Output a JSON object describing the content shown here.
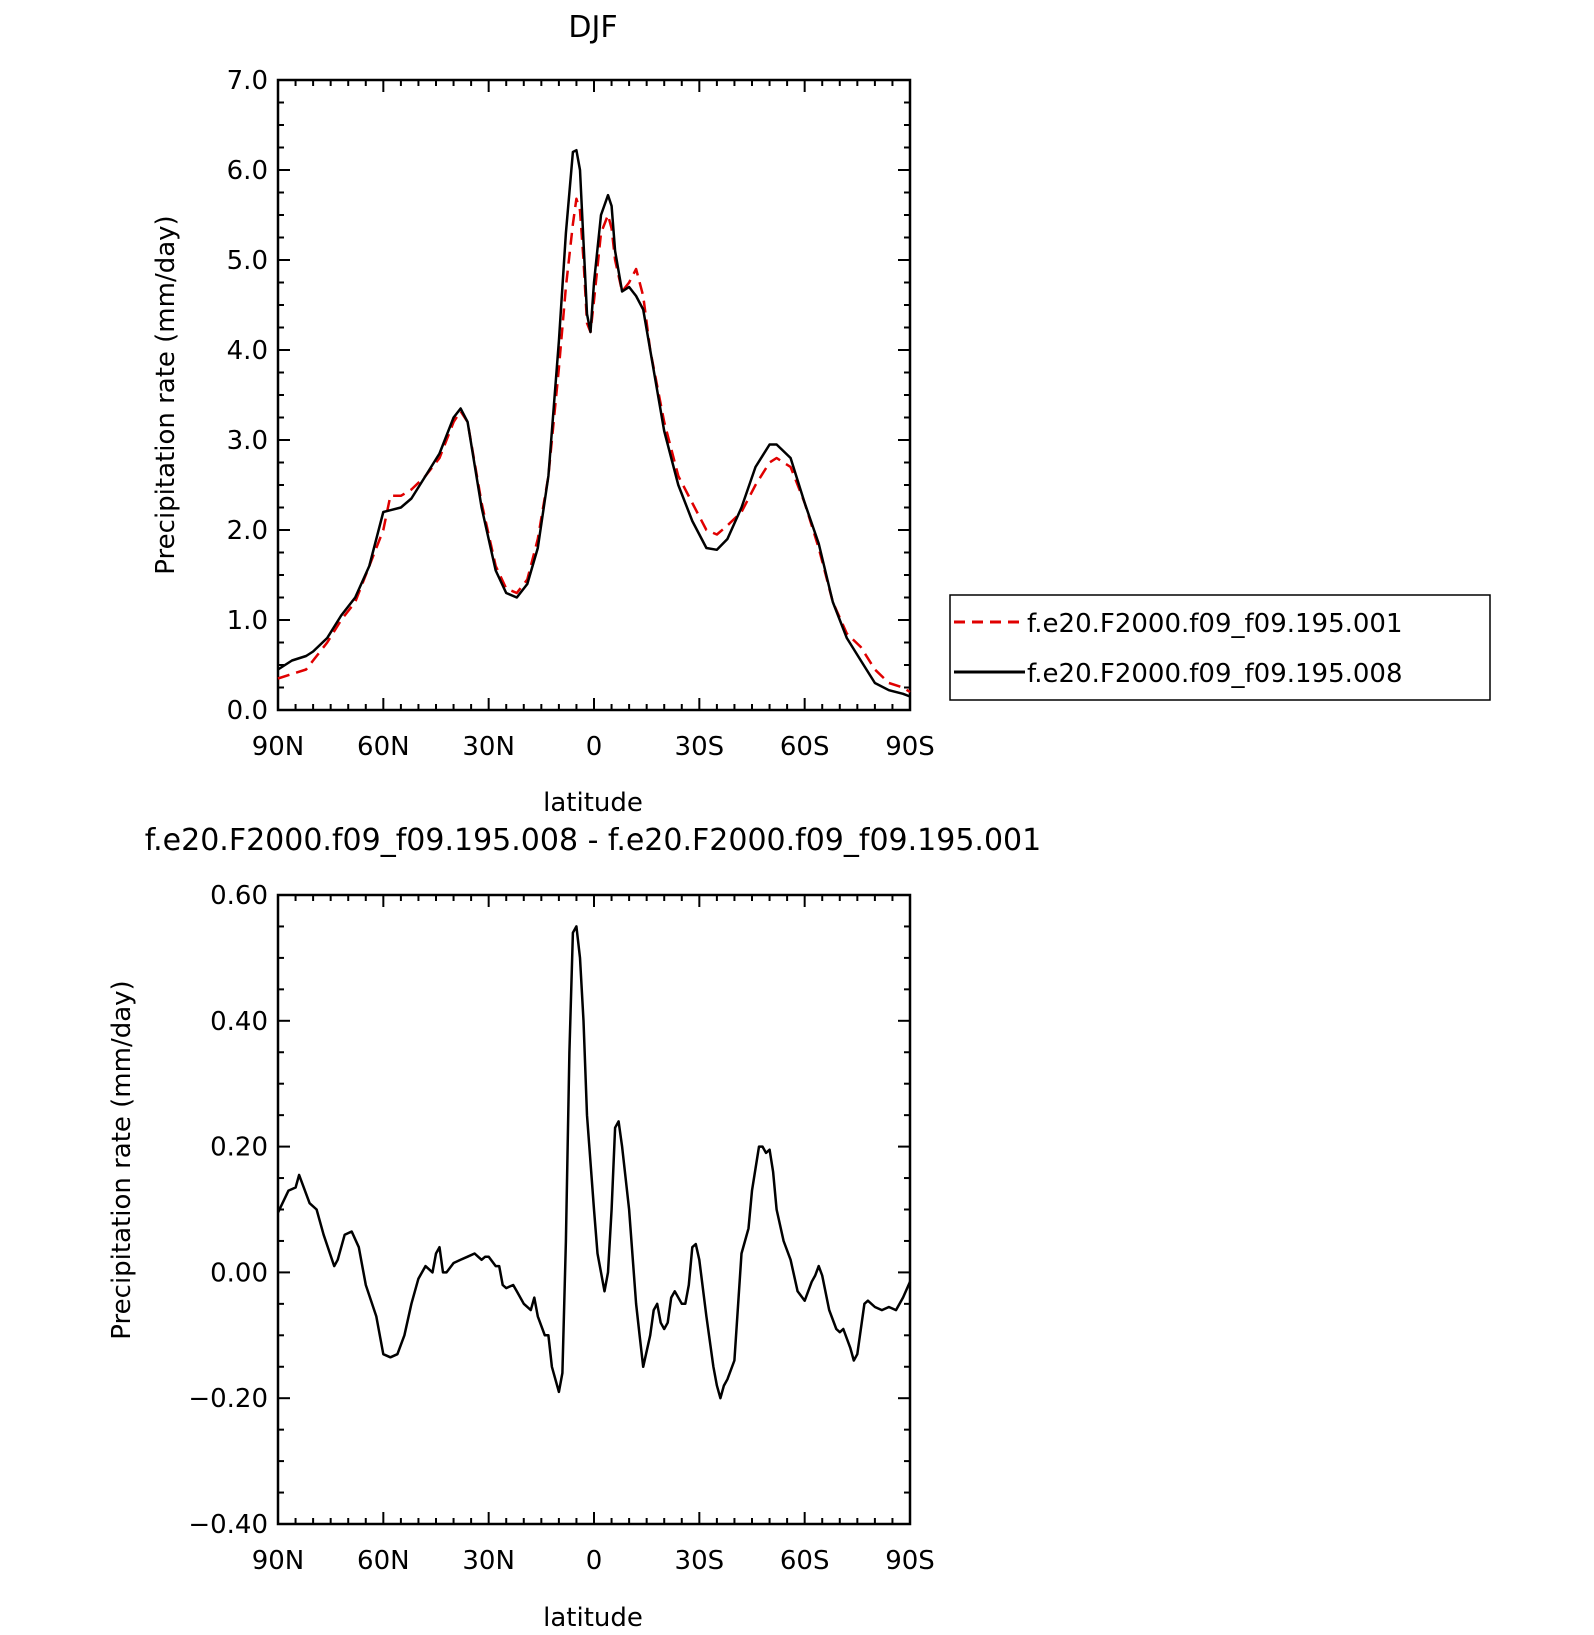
{
  "figure": {
    "background": "#ffffff",
    "line_color": "#000000",
    "dashed_color": "#e00000"
  },
  "chart_data": [
    {
      "type": "line",
      "title": "DJF",
      "xlabel": "latitude",
      "ylabel": "Precipitation rate (mm/day)",
      "xlim": [
        90,
        -90
      ],
      "ylim": [
        0.0,
        7.0
      ],
      "x_ticks": [
        90,
        60,
        30,
        0,
        -30,
        -60,
        -90
      ],
      "x_tick_labels": [
        "90N",
        "60N",
        "30N",
        "0",
        "30S",
        "60S",
        "90S"
      ],
      "y_ticks": [
        0.0,
        1.0,
        2.0,
        3.0,
        4.0,
        5.0,
        6.0,
        7.0
      ],
      "y_tick_labels": [
        "0.0",
        "1.0",
        "2.0",
        "3.0",
        "4.0",
        "5.0",
        "6.0",
        "7.0"
      ],
      "legend": "right, outside plot area",
      "grid": false,
      "series": [
        {
          "name": "f.e20.F2000.f09_f09.195.001",
          "style": "dashed",
          "color": "#e00000",
          "x": [
            90,
            86,
            82,
            80,
            76,
            72,
            68,
            64,
            60,
            58,
            55,
            52,
            48,
            44,
            40,
            38,
            36,
            32,
            28,
            25,
            22,
            19,
            16,
            13,
            10,
            8,
            6,
            5,
            4,
            3,
            2,
            1,
            0,
            -2,
            -4,
            -5,
            -6,
            -8,
            -10,
            -12,
            -14,
            -16,
            -20,
            -24,
            -28,
            -32,
            -35,
            -38,
            -42,
            -46,
            -50,
            -52,
            -56,
            -60,
            -64,
            -68,
            -72,
            -76,
            -80,
            -84,
            -88,
            -90
          ],
          "y": [
            0.35,
            0.4,
            0.45,
            0.55,
            0.75,
            1.0,
            1.2,
            1.6,
            2.0,
            2.38,
            2.38,
            2.45,
            2.6,
            2.8,
            3.2,
            3.32,
            3.2,
            2.3,
            1.6,
            1.35,
            1.3,
            1.45,
            1.9,
            2.6,
            3.8,
            4.7,
            5.4,
            5.68,
            5.55,
            5.0,
            4.3,
            4.2,
            4.55,
            5.3,
            5.5,
            5.35,
            5.0,
            4.65,
            4.75,
            4.9,
            4.6,
            4.0,
            3.2,
            2.6,
            2.3,
            2.0,
            1.95,
            2.05,
            2.2,
            2.5,
            2.75,
            2.8,
            2.7,
            2.3,
            1.8,
            1.2,
            0.85,
            0.7,
            0.45,
            0.3,
            0.25,
            0.2
          ]
        },
        {
          "name": "f.e20.F2000.f09_f09.195.008",
          "style": "solid",
          "color": "#000000",
          "x": [
            90,
            86,
            82,
            80,
            76,
            72,
            68,
            64,
            60,
            58,
            55,
            52,
            48,
            44,
            40,
            38,
            36,
            32,
            28,
            25,
            22,
            19,
            16,
            13,
            10,
            8,
            6,
            5,
            4,
            3,
            2,
            1,
            0,
            -2,
            -4,
            -5,
            -6,
            -8,
            -10,
            -12,
            -14,
            -16,
            -20,
            -24,
            -28,
            -32,
            -35,
            -38,
            -42,
            -46,
            -50,
            -52,
            -56,
            -60,
            -64,
            -68,
            -72,
            -76,
            -80,
            -84,
            -88,
            -90
          ],
          "y": [
            0.45,
            0.55,
            0.6,
            0.65,
            0.8,
            1.05,
            1.25,
            1.6,
            2.2,
            2.22,
            2.25,
            2.35,
            2.6,
            2.85,
            3.25,
            3.35,
            3.2,
            2.25,
            1.55,
            1.3,
            1.25,
            1.4,
            1.8,
            2.6,
            4.1,
            5.3,
            6.2,
            6.22,
            6.0,
            5.2,
            4.4,
            4.2,
            4.75,
            5.5,
            5.72,
            5.6,
            5.1,
            4.65,
            4.7,
            4.6,
            4.45,
            4.0,
            3.1,
            2.5,
            2.1,
            1.8,
            1.78,
            1.9,
            2.25,
            2.7,
            2.95,
            2.95,
            2.8,
            2.3,
            1.85,
            1.2,
            0.8,
            0.55,
            0.3,
            0.22,
            0.18,
            0.15
          ]
        }
      ]
    },
    {
      "type": "line",
      "title": "f.e20.F2000.f09_f09.195.008 - f.e20.F2000.f09_f09.195.001",
      "xlabel": "latitude",
      "ylabel": "Precipitation rate (mm/day)",
      "xlim": [
        90,
        -90
      ],
      "ylim": [
        -0.4,
        0.6
      ],
      "x_ticks": [
        90,
        60,
        30,
        0,
        -30,
        -60,
        -90
      ],
      "x_tick_labels": [
        "90N",
        "60N",
        "30N",
        "0",
        "30S",
        "60S",
        "90S"
      ],
      "y_ticks": [
        -0.4,
        -0.2,
        0.0,
        0.2,
        0.4,
        0.6
      ],
      "y_tick_labels": [
        "−0.40",
        "−0.20",
        "0.00",
        "0.20",
        "0.40",
        "0.60"
      ],
      "grid": false,
      "series": [
        {
          "style": "solid",
          "color": "#000000",
          "x": [
            90,
            87,
            85,
            84,
            81,
            79,
            77,
            74,
            73,
            71,
            69,
            67,
            65,
            62,
            60,
            58,
            56,
            54,
            52,
            50,
            48,
            46,
            45,
            44,
            43,
            42,
            40,
            38,
            36,
            34,
            33,
            32,
            31,
            30,
            28,
            27,
            26,
            25,
            23,
            22,
            20,
            18,
            17,
            16,
            14,
            13,
            12,
            10,
            9,
            8,
            7,
            6,
            5,
            4,
            3,
            2,
            0,
            -1,
            -2,
            -3,
            -4,
            -5,
            -6,
            -7,
            -8,
            -9,
            -10,
            -12,
            -13,
            -14,
            -16,
            -17,
            -18,
            -19,
            -20,
            -21,
            -22,
            -23,
            -25,
            -26,
            -27,
            -28,
            -29,
            -30,
            -32,
            -34,
            -35,
            -36,
            -37,
            -38,
            -40,
            -42,
            -43,
            -44,
            -45,
            -47,
            -48,
            -49,
            -50,
            -51,
            -52,
            -54,
            -56,
            -58,
            -60,
            -62,
            -63,
            -64,
            -65,
            -67,
            -69,
            -70,
            -71,
            -73,
            -74,
            -75,
            -77,
            -78,
            -80,
            -82,
            -84,
            -86,
            -88,
            -90
          ],
          "y": [
            0.095,
            0.13,
            0.135,
            0.155,
            0.11,
            0.1,
            0.06,
            0.01,
            0.02,
            0.06,
            0.065,
            0.04,
            -0.02,
            -0.07,
            -0.13,
            -0.135,
            -0.13,
            -0.1,
            -0.05,
            -0.01,
            0.01,
            0.0,
            0.03,
            0.04,
            0.0,
            0.0,
            0.015,
            0.02,
            0.025,
            0.03,
            0.025,
            0.02,
            0.025,
            0.025,
            0.01,
            0.01,
            -0.02,
            -0.025,
            -0.02,
            -0.03,
            -0.05,
            -0.06,
            -0.04,
            -0.07,
            -0.1,
            -0.1,
            -0.15,
            -0.19,
            -0.16,
            0.05,
            0.35,
            0.54,
            0.55,
            0.5,
            0.4,
            0.25,
            0.1,
            0.03,
            0.0,
            -0.03,
            0.0,
            0.1,
            0.23,
            0.24,
            0.2,
            0.15,
            0.1,
            -0.05,
            -0.1,
            -0.15,
            -0.1,
            -0.06,
            -0.05,
            -0.08,
            -0.09,
            -0.08,
            -0.04,
            -0.03,
            -0.05,
            -0.05,
            -0.02,
            0.04,
            0.045,
            0.02,
            -0.07,
            -0.15,
            -0.18,
            -0.2,
            -0.18,
            -0.17,
            -0.14,
            0.03,
            0.05,
            0.07,
            0.13,
            0.2,
            0.2,
            0.19,
            0.195,
            0.16,
            0.1,
            0.05,
            0.02,
            -0.03,
            -0.045,
            -0.015,
            -0.005,
            0.01,
            -0.005,
            -0.06,
            -0.09,
            -0.095,
            -0.09,
            -0.12,
            -0.14,
            -0.13,
            -0.05,
            -0.045,
            -0.055,
            -0.06,
            -0.055,
            -0.06,
            -0.04,
            -0.015
          ]
        }
      ]
    }
  ]
}
